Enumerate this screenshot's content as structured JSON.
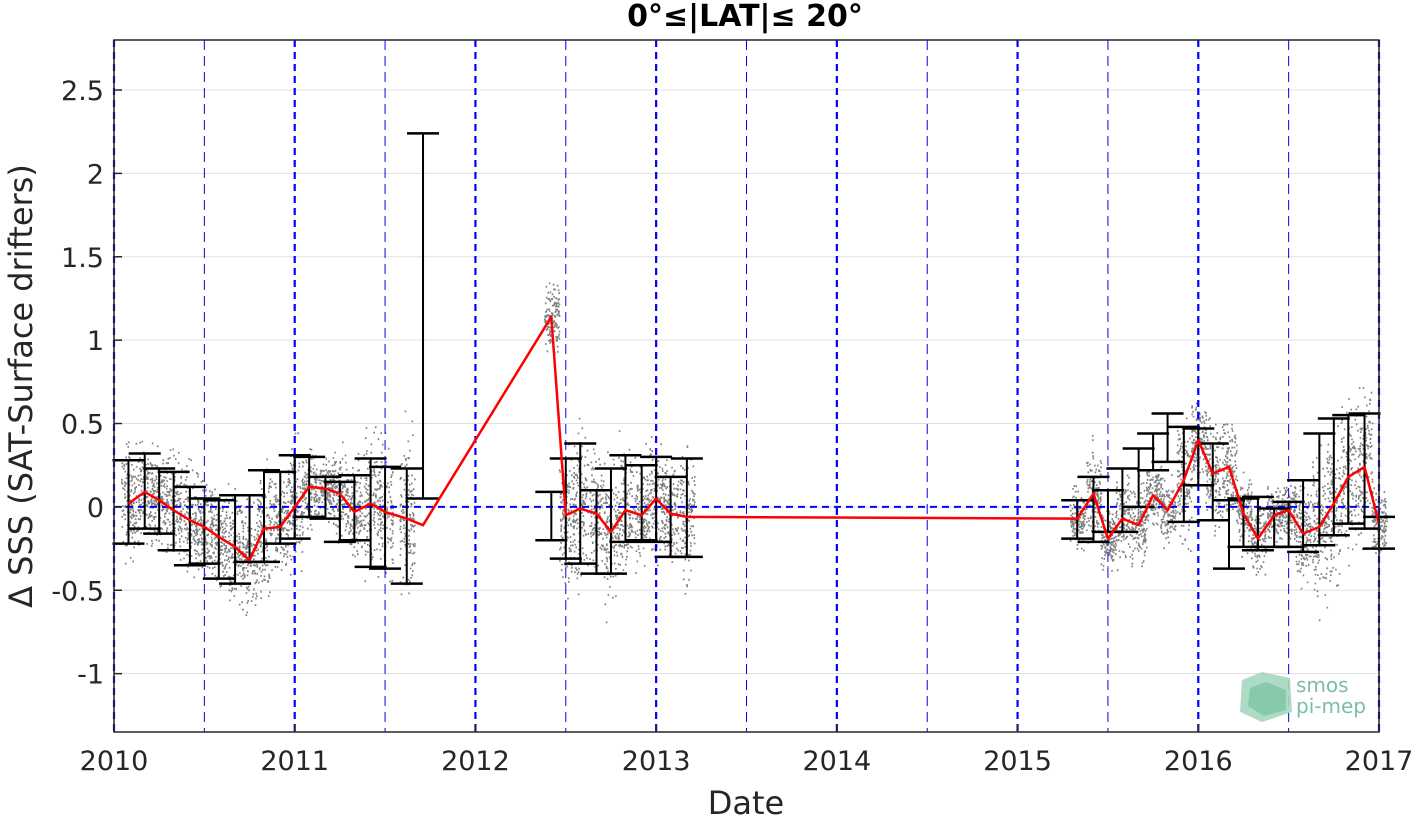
{
  "chart_data": {
    "type": "line",
    "title": "0°≤|LAT|≤ 20°",
    "xlabel": "Date",
    "ylabel": "Δ SSS (SAT-Surface drifters)",
    "xlim": [
      2010,
      2017
    ],
    "ylim": [
      -1.35,
      2.8
    ],
    "x_tick_labels": [
      "2010",
      "2011",
      "2012",
      "2013",
      "2014",
      "2015",
      "2016",
      "2017"
    ],
    "y_ticks": [
      -1,
      -0.5,
      0,
      0.5,
      1,
      1.5,
      2,
      2.5
    ],
    "y_tick_labels": [
      "-1",
      "-0.5",
      "0",
      "0.5",
      "1",
      "1.5",
      "2",
      "2.5"
    ],
    "grid": "horizontal",
    "zero_line": 0,
    "year_boundary_lines": [
      2010,
      2011,
      2012,
      2013,
      2014,
      2015,
      2016,
      2017
    ],
    "half_year_lines": [
      2010.5,
      2011.5,
      2012.5,
      2013.5,
      2014.5,
      2015.5,
      2016.5
    ],
    "colors": {
      "mean_line": "#ff0000",
      "error_bars": "#000000",
      "scatter": "#808080",
      "vertical_lines": "#0000ff",
      "zero_line": "#0000ff",
      "grid": "#e0e0e0"
    },
    "series": [
      {
        "type": "line_with_errorbars",
        "x": [
          2010.08,
          2010.17,
          2010.25,
          2010.33,
          2010.42,
          2010.5,
          2010.58,
          2010.67,
          2010.75,
          2010.83,
          2010.92,
          2011.0,
          2011.08,
          2011.17,
          2011.25,
          2011.33,
          2011.42,
          2011.5,
          2011.62,
          2011.71,
          2012.42,
          2012.5,
          2012.58,
          2012.67,
          2012.75,
          2012.83,
          2012.92,
          2013.0,
          2013.08,
          2013.17,
          2015.33,
          2015.42,
          2015.5,
          2015.58,
          2015.67,
          2015.75,
          2015.83,
          2015.92,
          2016.0,
          2016.08,
          2016.17,
          2016.25,
          2016.33,
          2016.42,
          2016.5,
          2016.58,
          2016.67,
          2016.75,
          2016.83,
          2016.92,
          2017.0
        ],
        "y": [
          0.02,
          0.09,
          0.04,
          -0.02,
          -0.08,
          -0.12,
          -0.18,
          -0.24,
          -0.32,
          -0.13,
          -0.12,
          0.0,
          0.12,
          0.11,
          0.08,
          -0.03,
          0.02,
          -0.03,
          -0.07,
          -0.11,
          1.14,
          -0.05,
          -0.01,
          -0.04,
          -0.15,
          -0.02,
          -0.05,
          0.05,
          -0.04,
          -0.06,
          -0.07,
          0.08,
          -0.19,
          -0.07,
          -0.11,
          0.07,
          -0.02,
          0.16,
          0.4,
          0.2,
          0.24,
          -0.04,
          -0.19,
          -0.05,
          -0.02,
          -0.16,
          -0.12,
          0.02,
          0.18,
          0.24,
          -0.1
        ],
        "err_low": [
          -0.22,
          -0.13,
          -0.16,
          -0.26,
          -0.35,
          -0.34,
          -0.43,
          -0.46,
          -0.33,
          -0.33,
          -0.22,
          -0.19,
          -0.06,
          -0.07,
          -0.21,
          -0.2,
          -0.36,
          -0.37,
          -0.46,
          0.05,
          -0.2,
          -0.31,
          -0.34,
          -0.4,
          -0.4,
          -0.21,
          -0.2,
          -0.21,
          -0.3,
          -0.3,
          -0.19,
          -0.21,
          -0.15,
          -0.15,
          0.0,
          0.22,
          0.27,
          -0.09,
          0.13,
          -0.08,
          -0.37,
          -0.24,
          -0.26,
          -0.24,
          -0.24,
          -0.27,
          -0.23,
          -0.17,
          -0.1,
          -0.13,
          -0.25
        ],
        "err_high": [
          0.28,
          0.32,
          0.23,
          0.21,
          0.12,
          0.05,
          0.04,
          0.07,
          0.07,
          0.22,
          0.21,
          0.31,
          0.3,
          0.18,
          0.15,
          0.19,
          0.29,
          0.24,
          0.23,
          2.24,
          0.09,
          0.29,
          0.38,
          0.1,
          0.23,
          0.31,
          0.25,
          0.3,
          0.18,
          0.29,
          0.04,
          0.18,
          0.1,
          0.23,
          0.35,
          0.44,
          0.56,
          0.48,
          0.47,
          0.38,
          0.04,
          0.05,
          0.06,
          -0.01,
          0.03,
          0.16,
          0.44,
          0.53,
          0.55,
          0.56,
          -0.06
        ]
      }
    ]
  },
  "logo": {
    "line1": "smos",
    "line2": "pi-mep",
    "color": "#6fb89a"
  }
}
